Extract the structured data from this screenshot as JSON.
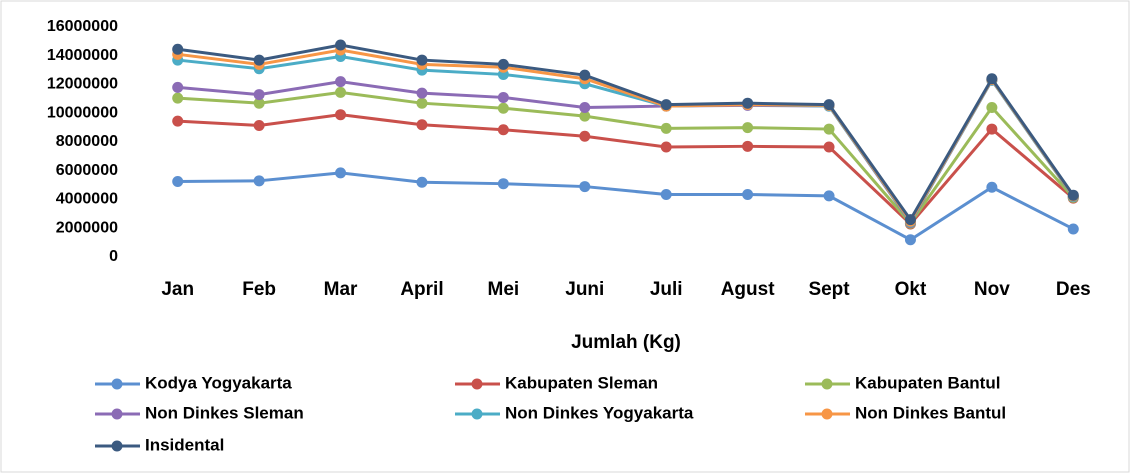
{
  "chart_data": {
    "type": "line",
    "x_label": "Jumlah (Kg)",
    "categories": [
      "Jan",
      "Feb",
      "Mar",
      "April",
      "Mei",
      "Juni",
      "Juli",
      "Agust",
      "Sept",
      "Okt",
      "Nov",
      "Des"
    ],
    "series": [
      {
        "name": "Kodya Yogyakarta",
        "color": "#5b8fd0",
        "values": [
          5250000,
          5300000,
          5850000,
          5200000,
          5100000,
          4900000,
          4350000,
          4350000,
          4250000,
          1200000,
          4850000,
          1950000
        ]
      },
      {
        "name": "Kabupaten Sleman",
        "color": "#c9504b",
        "values": [
          9450000,
          9150000,
          9900000,
          9200000,
          8850000,
          8400000,
          7650000,
          7700000,
          7650000,
          2300000,
          8900000,
          4100000
        ]
      },
      {
        "name": "Kabupaten Bantul",
        "color": "#9bbb59",
        "values": [
          11050000,
          10700000,
          11450000,
          10700000,
          10350000,
          9800000,
          8950000,
          9000000,
          8900000,
          2350000,
          10400000,
          4150000
        ]
      },
      {
        "name": "Non Dinkes Sleman",
        "color": "#8b6bb5",
        "values": [
          11800000,
          11300000,
          12200000,
          11400000,
          11100000,
          10400000,
          10500000,
          10550000,
          10500000,
          2400000,
          12300000,
          4200000
        ]
      },
      {
        "name": "Non Dinkes Yogyakarta",
        "color": "#4bacc6",
        "values": [
          13700000,
          13100000,
          13950000,
          13000000,
          12700000,
          12050000,
          10500000,
          10600000,
          10500000,
          2450000,
          12300000,
          4200000
        ]
      },
      {
        "name": "Non Dinkes Bantul",
        "color": "#f79646",
        "values": [
          14100000,
          13400000,
          14400000,
          13400000,
          13200000,
          12400000,
          10500000,
          10600000,
          10550000,
          2500000,
          12350000,
          4250000
        ]
      },
      {
        "name": "Insidental",
        "color": "#3b5a80",
        "values": [
          14450000,
          13700000,
          14750000,
          13700000,
          13400000,
          12650000,
          10600000,
          10700000,
          10600000,
          2600000,
          12400000,
          4300000
        ]
      }
    ],
    "ylim": [
      0,
      16000000
    ],
    "yticks": [
      0,
      2000000,
      4000000,
      6000000,
      8000000,
      10000000,
      12000000,
      14000000,
      16000000
    ],
    "grid": false,
    "legend": "bottom"
  }
}
